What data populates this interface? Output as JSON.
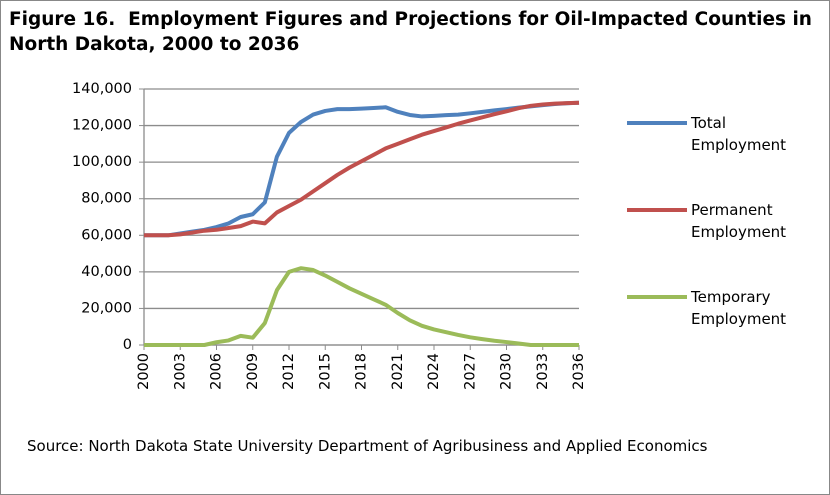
{
  "chart_data": {
    "type": "line",
    "title": "Figure 16.  Employment Figures and Projections for Oil-Impacted Counties in North Dakota, 2000 to 2036",
    "source": "Source: North Dakota State University Department of Agribusiness and Applied Economics",
    "x": [
      2000,
      2001,
      2002,
      2003,
      2004,
      2005,
      2006,
      2007,
      2008,
      2009,
      2010,
      2011,
      2012,
      2013,
      2014,
      2015,
      2016,
      2017,
      2018,
      2019,
      2020,
      2021,
      2022,
      2023,
      2024,
      2025,
      2026,
      2027,
      2028,
      2029,
      2030,
      2031,
      2032,
      2033,
      2034,
      2035,
      2036
    ],
    "xlim": [
      2000,
      2036
    ],
    "xticks": [
      2000,
      2003,
      2006,
      2009,
      2012,
      2015,
      2018,
      2021,
      2024,
      2027,
      2030,
      2033,
      2036
    ],
    "ylim": [
      0,
      140000
    ],
    "yticks": [
      0,
      {
        "value": 20000,
        "label": "20,000"
      },
      {
        "value": 40000,
        "label": "40,000"
      },
      {
        "value": 60000,
        "label": "60,000"
      },
      {
        "value": 80000,
        "label": "80,000"
      },
      {
        "value": 100000,
        "label": "100,000"
      },
      {
        "value": 120000,
        "label": "120,000"
      },
      {
        "value": 140000,
        "label": "140,000"
      }
    ],
    "grid": true,
    "legend": "right",
    "series": [
      {
        "name": "Total Employment",
        "color": "#4f81bd",
        "values": [
          60000,
          60000,
          60000,
          61000,
          62000,
          63000,
          64500,
          66500,
          70000,
          71500,
          78000,
          103000,
          116000,
          122000,
          126000,
          128000,
          129000,
          129000,
          129300,
          129600,
          130000,
          127500,
          125800,
          125000,
          125300,
          125700,
          126000,
          126700,
          127500,
          128300,
          129000,
          129800,
          130500,
          131200,
          131800,
          132200,
          132500
        ]
      },
      {
        "name": "Permanent Employment",
        "color": "#c0504d",
        "values": [
          60000,
          60000,
          60000,
          60500,
          61500,
          62500,
          63000,
          64000,
          65000,
          67500,
          66500,
          72500,
          76000,
          79500,
          84000,
          88500,
          93000,
          97000,
          100500,
          104000,
          107500,
          110000,
          112500,
          115000,
          117000,
          119000,
          121000,
          122800,
          124500,
          126200,
          127800,
          129500,
          130800,
          131500,
          132000,
          132300,
          132500
        ]
      },
      {
        "name": "Temporary Employment",
        "color": "#9bbb59",
        "values": [
          0,
          0,
          0,
          0,
          0,
          0,
          1500,
          2500,
          5000,
          4000,
          12000,
          30000,
          40000,
          42000,
          41000,
          38000,
          34500,
          31000,
          28000,
          25000,
          22000,
          17500,
          13500,
          10500,
          8500,
          7000,
          5500,
          4200,
          3200,
          2300,
          1600,
          800,
          0,
          0,
          0,
          0,
          0
        ]
      }
    ]
  }
}
